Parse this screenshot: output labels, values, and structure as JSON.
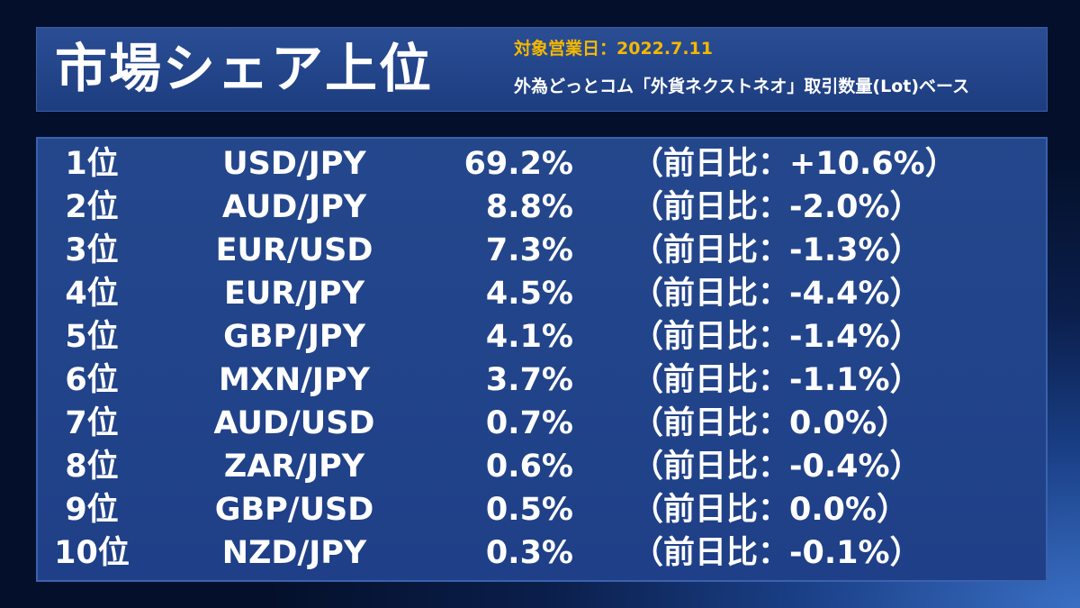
{
  "header": {
    "title": "市場シェア上位",
    "date_line": "対象営業日：2022.7.11",
    "basis_line": "外為どっとコム「外貨ネクストネオ」取引数量(Lot)ベース"
  },
  "rows": [
    {
      "rank": "1位",
      "pair": "USD/JPY",
      "share": "69.2%",
      "change": "（前日比：+10.6%）"
    },
    {
      "rank": "2位",
      "pair": "AUD/JPY",
      "share": "8.8%",
      "change": "（前日比：-2.0%）"
    },
    {
      "rank": "3位",
      "pair": "EUR/USD",
      "share": "7.3%",
      "change": "（前日比：-1.3%）"
    },
    {
      "rank": "4位",
      "pair": "EUR/JPY",
      "share": "4.5%",
      "change": "（前日比：-4.4%）"
    },
    {
      "rank": "5位",
      "pair": "GBP/JPY",
      "share": "4.1%",
      "change": "（前日比：-1.4%）"
    },
    {
      "rank": "6位",
      "pair": "MXN/JPY",
      "share": "3.7%",
      "change": "（前日比：-1.1%）"
    },
    {
      "rank": "7位",
      "pair": "AUD/USD",
      "share": "0.7%",
      "change": "（前日比：0.0%）"
    },
    {
      "rank": "8位",
      "pair": "ZAR/JPY",
      "share": "0.6%",
      "change": "（前日比：-0.4%）"
    },
    {
      "rank": "9位",
      "pair": "GBP/USD",
      "share": "0.5%",
      "change": "（前日比：0.0%）"
    },
    {
      "rank": "10位",
      "pair": "NZD/JPY",
      "share": "0.3%",
      "change": "（前日比：-0.1%）"
    }
  ],
  "colors": {
    "accent": "#f5b800",
    "panel": "#24478c",
    "text": "#ffffff"
  }
}
